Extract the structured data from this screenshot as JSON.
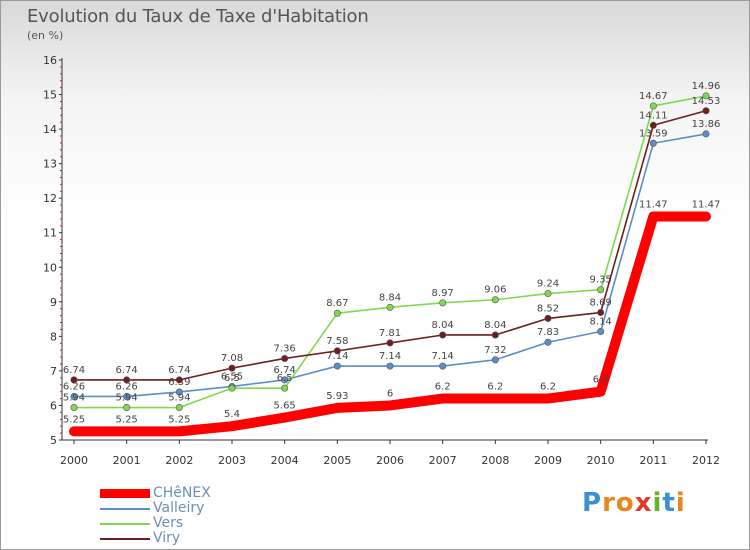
{
  "header": {
    "title": "Evolution du Taux de Taxe d'Habitation",
    "unit": "(en %)"
  },
  "logo": {
    "text": "Proxiti",
    "letters": [
      "P",
      "r",
      "o",
      "x",
      "i",
      "t",
      "i"
    ],
    "colors": [
      "#3a8fd6",
      "#e8861a",
      "#e8861a",
      "#e03a2a",
      "#6ab02a",
      "#3a8fd6",
      "#e8861a"
    ]
  },
  "chart_data": {
    "type": "line",
    "categories": [
      "2000",
      "2001",
      "2002",
      "2003",
      "2004",
      "2005",
      "2006",
      "2007",
      "2008",
      "2009",
      "2010",
      "2011",
      "2012"
    ],
    "ylim": [
      5,
      16
    ],
    "yticks": [
      "5",
      "6",
      "7",
      "8",
      "9",
      "10",
      "11",
      "12",
      "13",
      "14",
      "15",
      "16"
    ],
    "grid": false,
    "legend_position": "bottom-left",
    "series": [
      {
        "name": "Valleiry",
        "color": "#5b8ec7",
        "values": [
          6.26,
          6.26,
          6.39,
          6.55,
          6.74,
          7.14,
          7.14,
          7.14,
          7.32,
          7.83,
          8.14,
          13.59,
          13.86
        ],
        "labels": [
          "6.26",
          "6.26",
          "6.39",
          "6.55",
          "6.74",
          "7.14",
          "7.14",
          "7.14",
          "7.32",
          "7.83",
          "8.14",
          "13.59",
          "13.86"
        ]
      },
      {
        "name": "Vers",
        "color": "#7fd94f",
        "values": [
          5.94,
          5.94,
          5.94,
          6.5,
          6.5,
          8.67,
          8.84,
          8.97,
          9.06,
          9.24,
          9.35,
          14.67,
          14.96
        ],
        "labels": [
          "5.94",
          "5.94",
          "5.94",
          "6.5",
          "6.5",
          "8.67",
          "8.84",
          "8.97",
          "9.06",
          "9.24",
          "9.35",
          "14.67",
          "14.96"
        ]
      },
      {
        "name": "Viry",
        "color": "#6b1f1f",
        "values": [
          6.74,
          6.74,
          6.74,
          7.08,
          7.36,
          7.58,
          7.81,
          8.04,
          8.04,
          8.52,
          8.69,
          14.11,
          14.53
        ],
        "labels": [
          "6.74",
          "6.74",
          "6.74",
          "7.08",
          "7.36",
          "7.58",
          "7.81",
          "8.04",
          "8.04",
          "8.52",
          "8.69",
          "14.11",
          "14.53"
        ]
      },
      {
        "name": "CHêNEX",
        "color": "#ff0000",
        "values": [
          5.25,
          5.25,
          5.25,
          5.4,
          5.65,
          5.93,
          6,
          6.2,
          6.2,
          6.2,
          6.4,
          11.47,
          11.47
        ],
        "labels": [
          "5.25",
          "5.25",
          "5.25",
          "5.4",
          "5.65",
          "5.93",
          "6",
          "6.2",
          "6.2",
          "6.2",
          "6.4",
          "11.47",
          "11.47"
        ]
      }
    ],
    "legend": [
      {
        "name": "CHêNEX",
        "color": "#ff0000",
        "thick": true
      },
      {
        "name": "Valleiry",
        "color": "#5b8ec7",
        "thick": false
      },
      {
        "name": "Vers",
        "color": "#7fd94f",
        "thick": false
      },
      {
        "name": "Viry",
        "color": "#6b1f1f",
        "thick": false
      }
    ]
  }
}
